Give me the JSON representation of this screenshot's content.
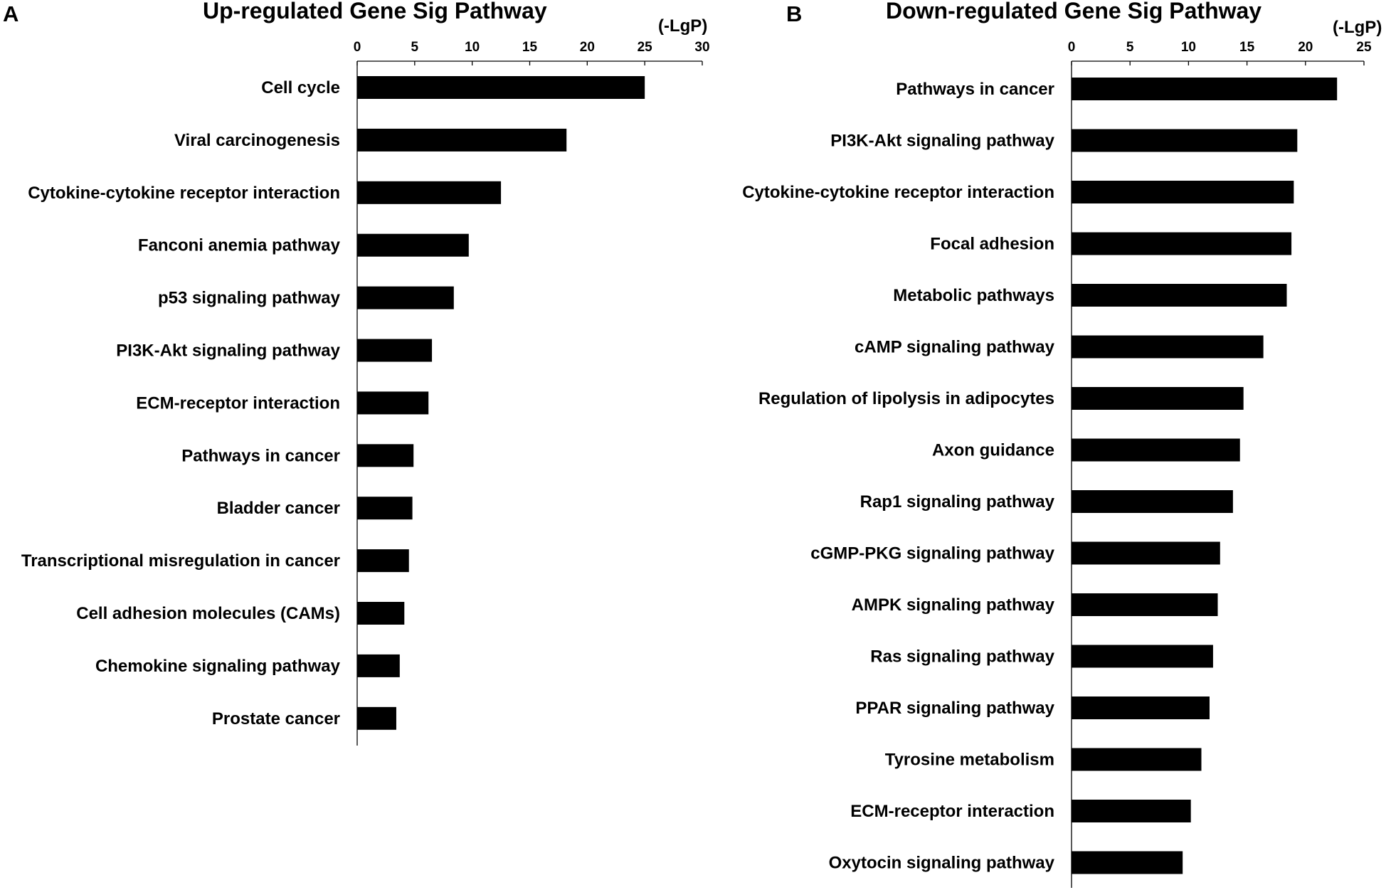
{
  "chart_data": [
    {
      "panel": "A",
      "type": "bar",
      "orientation": "horizontal",
      "title": "Up-regulated Gene Sig Pathway",
      "axis_unit": "(-LgP)",
      "xlim": [
        0,
        30
      ],
      "ticks": [
        0,
        5,
        10,
        15,
        20,
        25,
        30
      ],
      "categories": [
        "Cell cycle",
        "Viral carcinogenesis",
        "Cytokine-cytokine receptor interaction",
        "Fanconi anemia pathway",
        "p53 signaling pathway",
        "PI3K-Akt signaling pathway",
        "ECM-receptor interaction",
        "Pathways in cancer",
        "Bladder cancer",
        "Transcriptional misregulation in cancer",
        "Cell adhesion molecules (CAMs)",
        "Chemokine signaling pathway",
        "Prostate cancer"
      ],
      "values": [
        25.0,
        18.2,
        12.5,
        9.7,
        8.4,
        6.5,
        6.2,
        4.9,
        4.8,
        4.5,
        4.1,
        3.7,
        3.4
      ],
      "legend": "none",
      "grid": false
    },
    {
      "panel": "B",
      "type": "bar",
      "orientation": "horizontal",
      "title": "Down-regulated Gene Sig Pathway",
      "axis_unit": "(-LgP)",
      "xlim": [
        0,
        25
      ],
      "ticks": [
        0,
        5,
        10,
        15,
        20,
        25
      ],
      "categories": [
        "Pathways in cancer",
        "PI3K-Akt signaling pathway",
        "Cytokine-cytokine receptor interaction",
        "Focal adhesion",
        "Metabolic pathways",
        "cAMP signaling pathway",
        "Regulation of lipolysis in adipocytes",
        "Axon guidance",
        "Rap1 signaling pathway",
        "cGMP-PKG signaling pathway",
        "AMPK signaling pathway",
        "Ras signaling pathway",
        "PPAR signaling pathway",
        "Tyrosine metabolism",
        "ECM-receptor interaction",
        "Oxytocin signaling pathway"
      ],
      "values": [
        22.7,
        19.3,
        19.0,
        18.8,
        18.4,
        16.4,
        14.7,
        14.4,
        13.8,
        12.7,
        12.5,
        12.1,
        11.8,
        11.1,
        10.2,
        9.5
      ],
      "legend": "none",
      "grid": false
    }
  ]
}
